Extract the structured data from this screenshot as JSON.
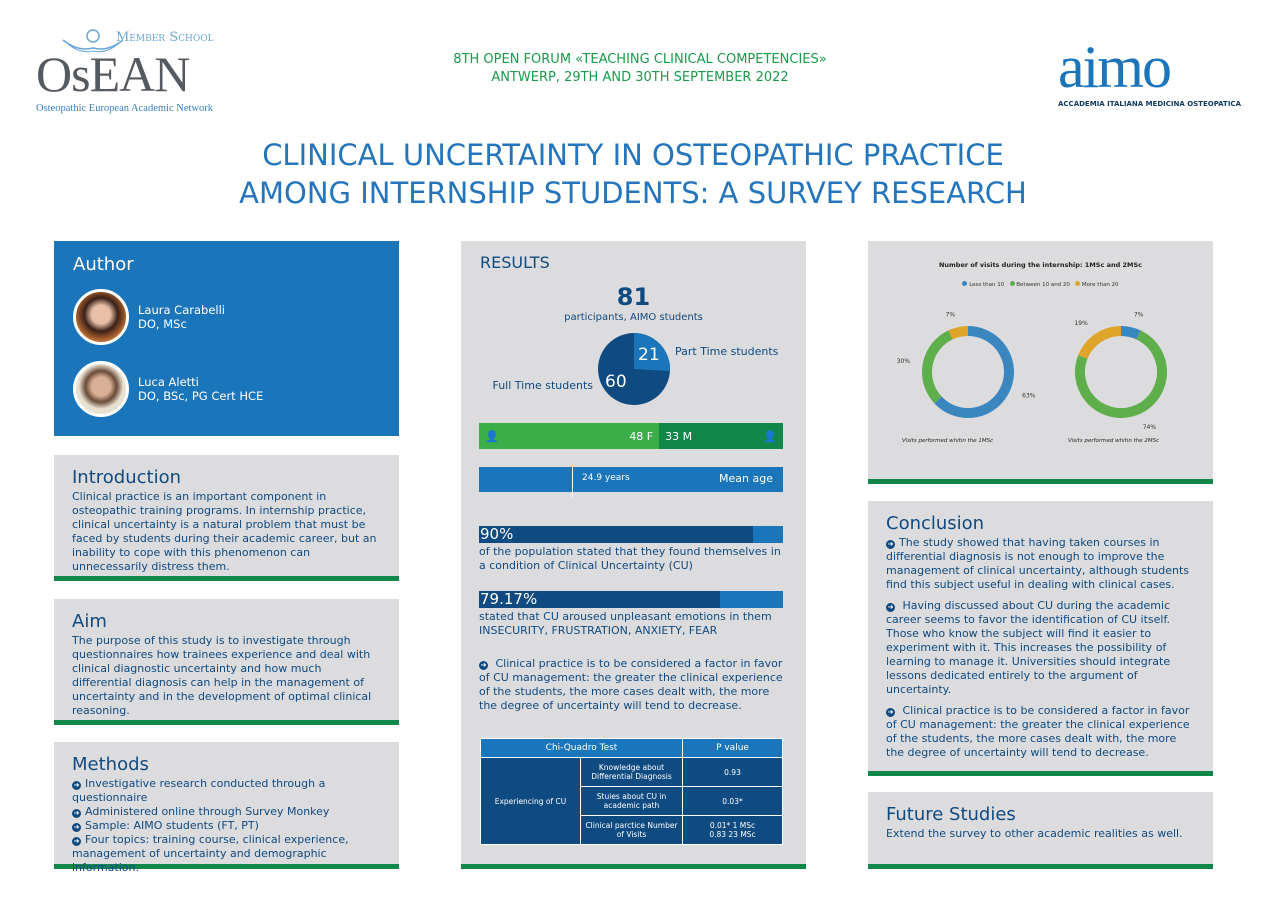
{
  "header": {
    "left_logo": {
      "tagline": "Member School",
      "name": "OsEAN",
      "subtitle": "Osteopathic European Academic Network"
    },
    "event_line1": "8TH OPEN FORUM «TEACHING CLINICAL COMPETENCIES»",
    "event_line2": "ANTWERP, 29TH AND 30TH SEPTEMBER 2022",
    "right_logo": {
      "name": "aimo",
      "subtitle": "ACCADEMIA ITALIANA MEDICINA OSTEOPATICA"
    },
    "title_line1": "CLINICAL UNCERTAINTY IN OSTEOPATHIC PRACTICE",
    "title_line2": "AMONG INTERNSHIP STUDENTS: A SURVEY RESEARCH"
  },
  "author": {
    "heading": "Author",
    "people": [
      {
        "name": "Laura Carabelli",
        "degrees": "DO, MSc"
      },
      {
        "name": "Luca Aletti",
        "degrees": "DO, BSc, PG Cert HCE"
      }
    ]
  },
  "introduction": {
    "heading": "Introduction",
    "text": "Clinical practice is an important component in osteopathic training programs. In internship practice, clinical uncertainty is a natural problem that must be faced by students during their academic career, but an inability to cope with this phenomenon can unnecessarily distress them."
  },
  "aim": {
    "heading": "Aim",
    "text": "The purpose of this study is to investigate through questionnaires how trainees experience and deal with clinical diagnostic uncertainty and how much differential diagnosis can help in the management of uncertainty and in the development of optimal clinical reasoning."
  },
  "methods": {
    "heading": "Methods",
    "items": [
      "Investigative research conducted through a questionnaire",
      "Administered online through Survey Monkey",
      "Sample: AIMO students (FT, PT)",
      "Four topics: training course, clinical experience, management of uncertainty and demographic information."
    ]
  },
  "results": {
    "heading": "RESULTS",
    "participants": "81",
    "participants_label": "participants, AIMO students",
    "full_time": {
      "value": 60,
      "label": "Full Time students"
    },
    "part_time": {
      "value": 21,
      "label": "Part Time students"
    },
    "female": {
      "value": 48,
      "label": "48 F"
    },
    "male": {
      "value": 33,
      "label": "33 M"
    },
    "mean_age": {
      "value": "24.9 years",
      "label": "Mean age"
    },
    "stat1": {
      "value": "90%",
      "fraction": 0.9,
      "text": "of the population stated that they found themselves in a condition of Clinical Uncertainty (CU)"
    },
    "stat2": {
      "value": "79.17%",
      "fraction": 0.7917,
      "text": "stated that CU aroused unpleasant emotions in them",
      "emotions": "INSECURITY, FRUSTRATION, ANXIETY, FEAR"
    },
    "note": "Clinical practice is to be considered a factor in favor of CU management: the greater the clinical experience of the students, the more cases dealt with, the more the degree of uncertainty will tend to decrease.",
    "table": {
      "col1": "Chi-Quadro Test",
      "col2": "P value",
      "group": "Experiencing of CU",
      "rows": [
        {
          "factor": "Knowledge about Differential Diagnosis",
          "p": "0.93"
        },
        {
          "factor": "Stuies about CU in academic path",
          "p": "0.03*"
        },
        {
          "factor": "Clinical parctice Number of Visits",
          "p": "0.01* 1 MSc",
          "p2": "0.83 23 MSc"
        }
      ]
    }
  },
  "chart_data": {
    "type": "pie",
    "variant": "donut",
    "title": "Number of visits during the internship: 1MSc and 2MSc",
    "legend": [
      "Less than 10",
      "Between 10 and 20",
      "More than 20"
    ],
    "legend_position": "top",
    "colors": [
      "#3a87c0",
      "#5fae4c",
      "#dea52a"
    ],
    "charts": [
      {
        "caption": "Visits performed whitin the 1MSc",
        "values": [
          63,
          30,
          7
        ],
        "labels": [
          "63%",
          "30%",
          "7%"
        ]
      },
      {
        "caption": "Visits performed whitin the 2MSc",
        "values": [
          7,
          74,
          19
        ],
        "labels": [
          "7%",
          "74%",
          "19%"
        ]
      }
    ]
  },
  "conclusion": {
    "heading": "Conclusion",
    "items": [
      "The study showed that having taken courses in differential diagnosis is not enough to improve the management of clinical uncertainty, although students find this subject useful in dealing with clinical cases.",
      "Having discussed about CU during the academic career seems to favor the identification of CU itself. Those who know the subject will find it easier to experiment with it. This increases the possibility of learning to manage it. Universities should integrate lessons dedicated entirely to the argument of uncertainty.",
      "Clinical practice is to be considered a factor in favor of CU management: the greater the clinical experience of the students, the more cases dealt with, the more the degree of uncertainty will tend to decrease."
    ]
  },
  "future": {
    "heading": "Future Studies",
    "text": "Extend the survey to other academic realities as well."
  }
}
